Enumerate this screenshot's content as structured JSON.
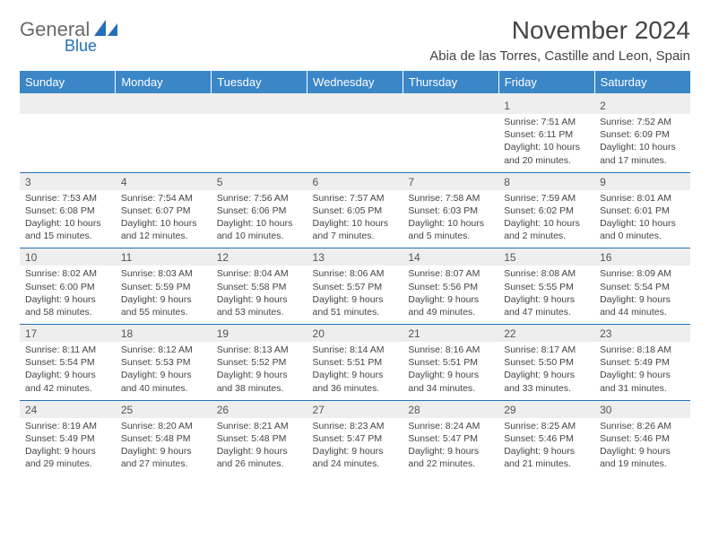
{
  "brand": {
    "general": "General",
    "blue": "Blue"
  },
  "title": "November 2024",
  "location": "Abia de las Torres, Castille and Leon, Spain",
  "colors": {
    "header_bg": "#3b86c7",
    "header_text": "#ffffff",
    "daynum_bg": "#eeeeee",
    "border": "#2570b8",
    "body_text": "#444444",
    "logo_gray": "#6a6a6a",
    "logo_blue": "#2570b8"
  },
  "daysOfWeek": [
    "Sunday",
    "Monday",
    "Tuesday",
    "Wednesday",
    "Thursday",
    "Friday",
    "Saturday"
  ],
  "weeks": [
    [
      {
        "n": "",
        "sr": "",
        "ss": "",
        "dl": ""
      },
      {
        "n": "",
        "sr": "",
        "ss": "",
        "dl": ""
      },
      {
        "n": "",
        "sr": "",
        "ss": "",
        "dl": ""
      },
      {
        "n": "",
        "sr": "",
        "ss": "",
        "dl": ""
      },
      {
        "n": "",
        "sr": "",
        "ss": "",
        "dl": ""
      },
      {
        "n": "1",
        "sr": "Sunrise: 7:51 AM",
        "ss": "Sunset: 6:11 PM",
        "dl": "Daylight: 10 hours and 20 minutes."
      },
      {
        "n": "2",
        "sr": "Sunrise: 7:52 AM",
        "ss": "Sunset: 6:09 PM",
        "dl": "Daylight: 10 hours and 17 minutes."
      }
    ],
    [
      {
        "n": "3",
        "sr": "Sunrise: 7:53 AM",
        "ss": "Sunset: 6:08 PM",
        "dl": "Daylight: 10 hours and 15 minutes."
      },
      {
        "n": "4",
        "sr": "Sunrise: 7:54 AM",
        "ss": "Sunset: 6:07 PM",
        "dl": "Daylight: 10 hours and 12 minutes."
      },
      {
        "n": "5",
        "sr": "Sunrise: 7:56 AM",
        "ss": "Sunset: 6:06 PM",
        "dl": "Daylight: 10 hours and 10 minutes."
      },
      {
        "n": "6",
        "sr": "Sunrise: 7:57 AM",
        "ss": "Sunset: 6:05 PM",
        "dl": "Daylight: 10 hours and 7 minutes."
      },
      {
        "n": "7",
        "sr": "Sunrise: 7:58 AM",
        "ss": "Sunset: 6:03 PM",
        "dl": "Daylight: 10 hours and 5 minutes."
      },
      {
        "n": "8",
        "sr": "Sunrise: 7:59 AM",
        "ss": "Sunset: 6:02 PM",
        "dl": "Daylight: 10 hours and 2 minutes."
      },
      {
        "n": "9",
        "sr": "Sunrise: 8:01 AM",
        "ss": "Sunset: 6:01 PM",
        "dl": "Daylight: 10 hours and 0 minutes."
      }
    ],
    [
      {
        "n": "10",
        "sr": "Sunrise: 8:02 AM",
        "ss": "Sunset: 6:00 PM",
        "dl": "Daylight: 9 hours and 58 minutes."
      },
      {
        "n": "11",
        "sr": "Sunrise: 8:03 AM",
        "ss": "Sunset: 5:59 PM",
        "dl": "Daylight: 9 hours and 55 minutes."
      },
      {
        "n": "12",
        "sr": "Sunrise: 8:04 AM",
        "ss": "Sunset: 5:58 PM",
        "dl": "Daylight: 9 hours and 53 minutes."
      },
      {
        "n": "13",
        "sr": "Sunrise: 8:06 AM",
        "ss": "Sunset: 5:57 PM",
        "dl": "Daylight: 9 hours and 51 minutes."
      },
      {
        "n": "14",
        "sr": "Sunrise: 8:07 AM",
        "ss": "Sunset: 5:56 PM",
        "dl": "Daylight: 9 hours and 49 minutes."
      },
      {
        "n": "15",
        "sr": "Sunrise: 8:08 AM",
        "ss": "Sunset: 5:55 PM",
        "dl": "Daylight: 9 hours and 47 minutes."
      },
      {
        "n": "16",
        "sr": "Sunrise: 8:09 AM",
        "ss": "Sunset: 5:54 PM",
        "dl": "Daylight: 9 hours and 44 minutes."
      }
    ],
    [
      {
        "n": "17",
        "sr": "Sunrise: 8:11 AM",
        "ss": "Sunset: 5:54 PM",
        "dl": "Daylight: 9 hours and 42 minutes."
      },
      {
        "n": "18",
        "sr": "Sunrise: 8:12 AM",
        "ss": "Sunset: 5:53 PM",
        "dl": "Daylight: 9 hours and 40 minutes."
      },
      {
        "n": "19",
        "sr": "Sunrise: 8:13 AM",
        "ss": "Sunset: 5:52 PM",
        "dl": "Daylight: 9 hours and 38 minutes."
      },
      {
        "n": "20",
        "sr": "Sunrise: 8:14 AM",
        "ss": "Sunset: 5:51 PM",
        "dl": "Daylight: 9 hours and 36 minutes."
      },
      {
        "n": "21",
        "sr": "Sunrise: 8:16 AM",
        "ss": "Sunset: 5:51 PM",
        "dl": "Daylight: 9 hours and 34 minutes."
      },
      {
        "n": "22",
        "sr": "Sunrise: 8:17 AM",
        "ss": "Sunset: 5:50 PM",
        "dl": "Daylight: 9 hours and 33 minutes."
      },
      {
        "n": "23",
        "sr": "Sunrise: 8:18 AM",
        "ss": "Sunset: 5:49 PM",
        "dl": "Daylight: 9 hours and 31 minutes."
      }
    ],
    [
      {
        "n": "24",
        "sr": "Sunrise: 8:19 AM",
        "ss": "Sunset: 5:49 PM",
        "dl": "Daylight: 9 hours and 29 minutes."
      },
      {
        "n": "25",
        "sr": "Sunrise: 8:20 AM",
        "ss": "Sunset: 5:48 PM",
        "dl": "Daylight: 9 hours and 27 minutes."
      },
      {
        "n": "26",
        "sr": "Sunrise: 8:21 AM",
        "ss": "Sunset: 5:48 PM",
        "dl": "Daylight: 9 hours and 26 minutes."
      },
      {
        "n": "27",
        "sr": "Sunrise: 8:23 AM",
        "ss": "Sunset: 5:47 PM",
        "dl": "Daylight: 9 hours and 24 minutes."
      },
      {
        "n": "28",
        "sr": "Sunrise: 8:24 AM",
        "ss": "Sunset: 5:47 PM",
        "dl": "Daylight: 9 hours and 22 minutes."
      },
      {
        "n": "29",
        "sr": "Sunrise: 8:25 AM",
        "ss": "Sunset: 5:46 PM",
        "dl": "Daylight: 9 hours and 21 minutes."
      },
      {
        "n": "30",
        "sr": "Sunrise: 8:26 AM",
        "ss": "Sunset: 5:46 PM",
        "dl": "Daylight: 9 hours and 19 minutes."
      }
    ]
  ]
}
